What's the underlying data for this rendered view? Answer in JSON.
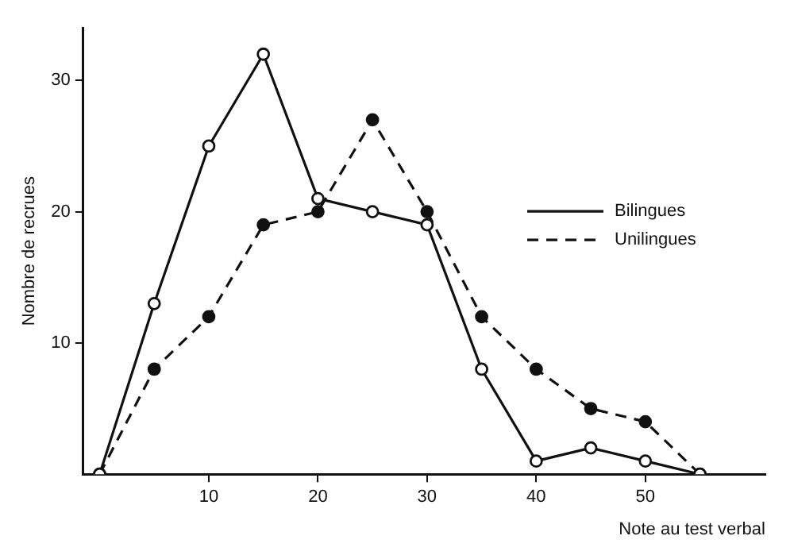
{
  "chart_data": {
    "type": "line",
    "xlabel": "Note au test verbal",
    "ylabel": "Nombre de recrues",
    "x": [
      0,
      5,
      10,
      15,
      20,
      25,
      30,
      35,
      40,
      45,
      50,
      55
    ],
    "series": [
      {
        "name": "Bilingues",
        "color": "#111111",
        "values": [
          0,
          13,
          25,
          32,
          21,
          20,
          19,
          8,
          1,
          2,
          1,
          0
        ],
        "line_style": "solid",
        "marker": "circle"
      },
      {
        "name": "Unilingues",
        "color": "#111111",
        "values": [
          0,
          8,
          12,
          19,
          20,
          27,
          20,
          12,
          8,
          5,
          4,
          0
        ],
        "line_style": "dashed",
        "marker": "circle"
      }
    ],
    "xlim": [
      -1.5,
      61
    ],
    "ylim": [
      0,
      34
    ],
    "xticks": [
      10,
      20,
      30,
      40,
      50
    ],
    "yticks": [
      10,
      20,
      30
    ],
    "grid": false,
    "legend": "right"
  }
}
